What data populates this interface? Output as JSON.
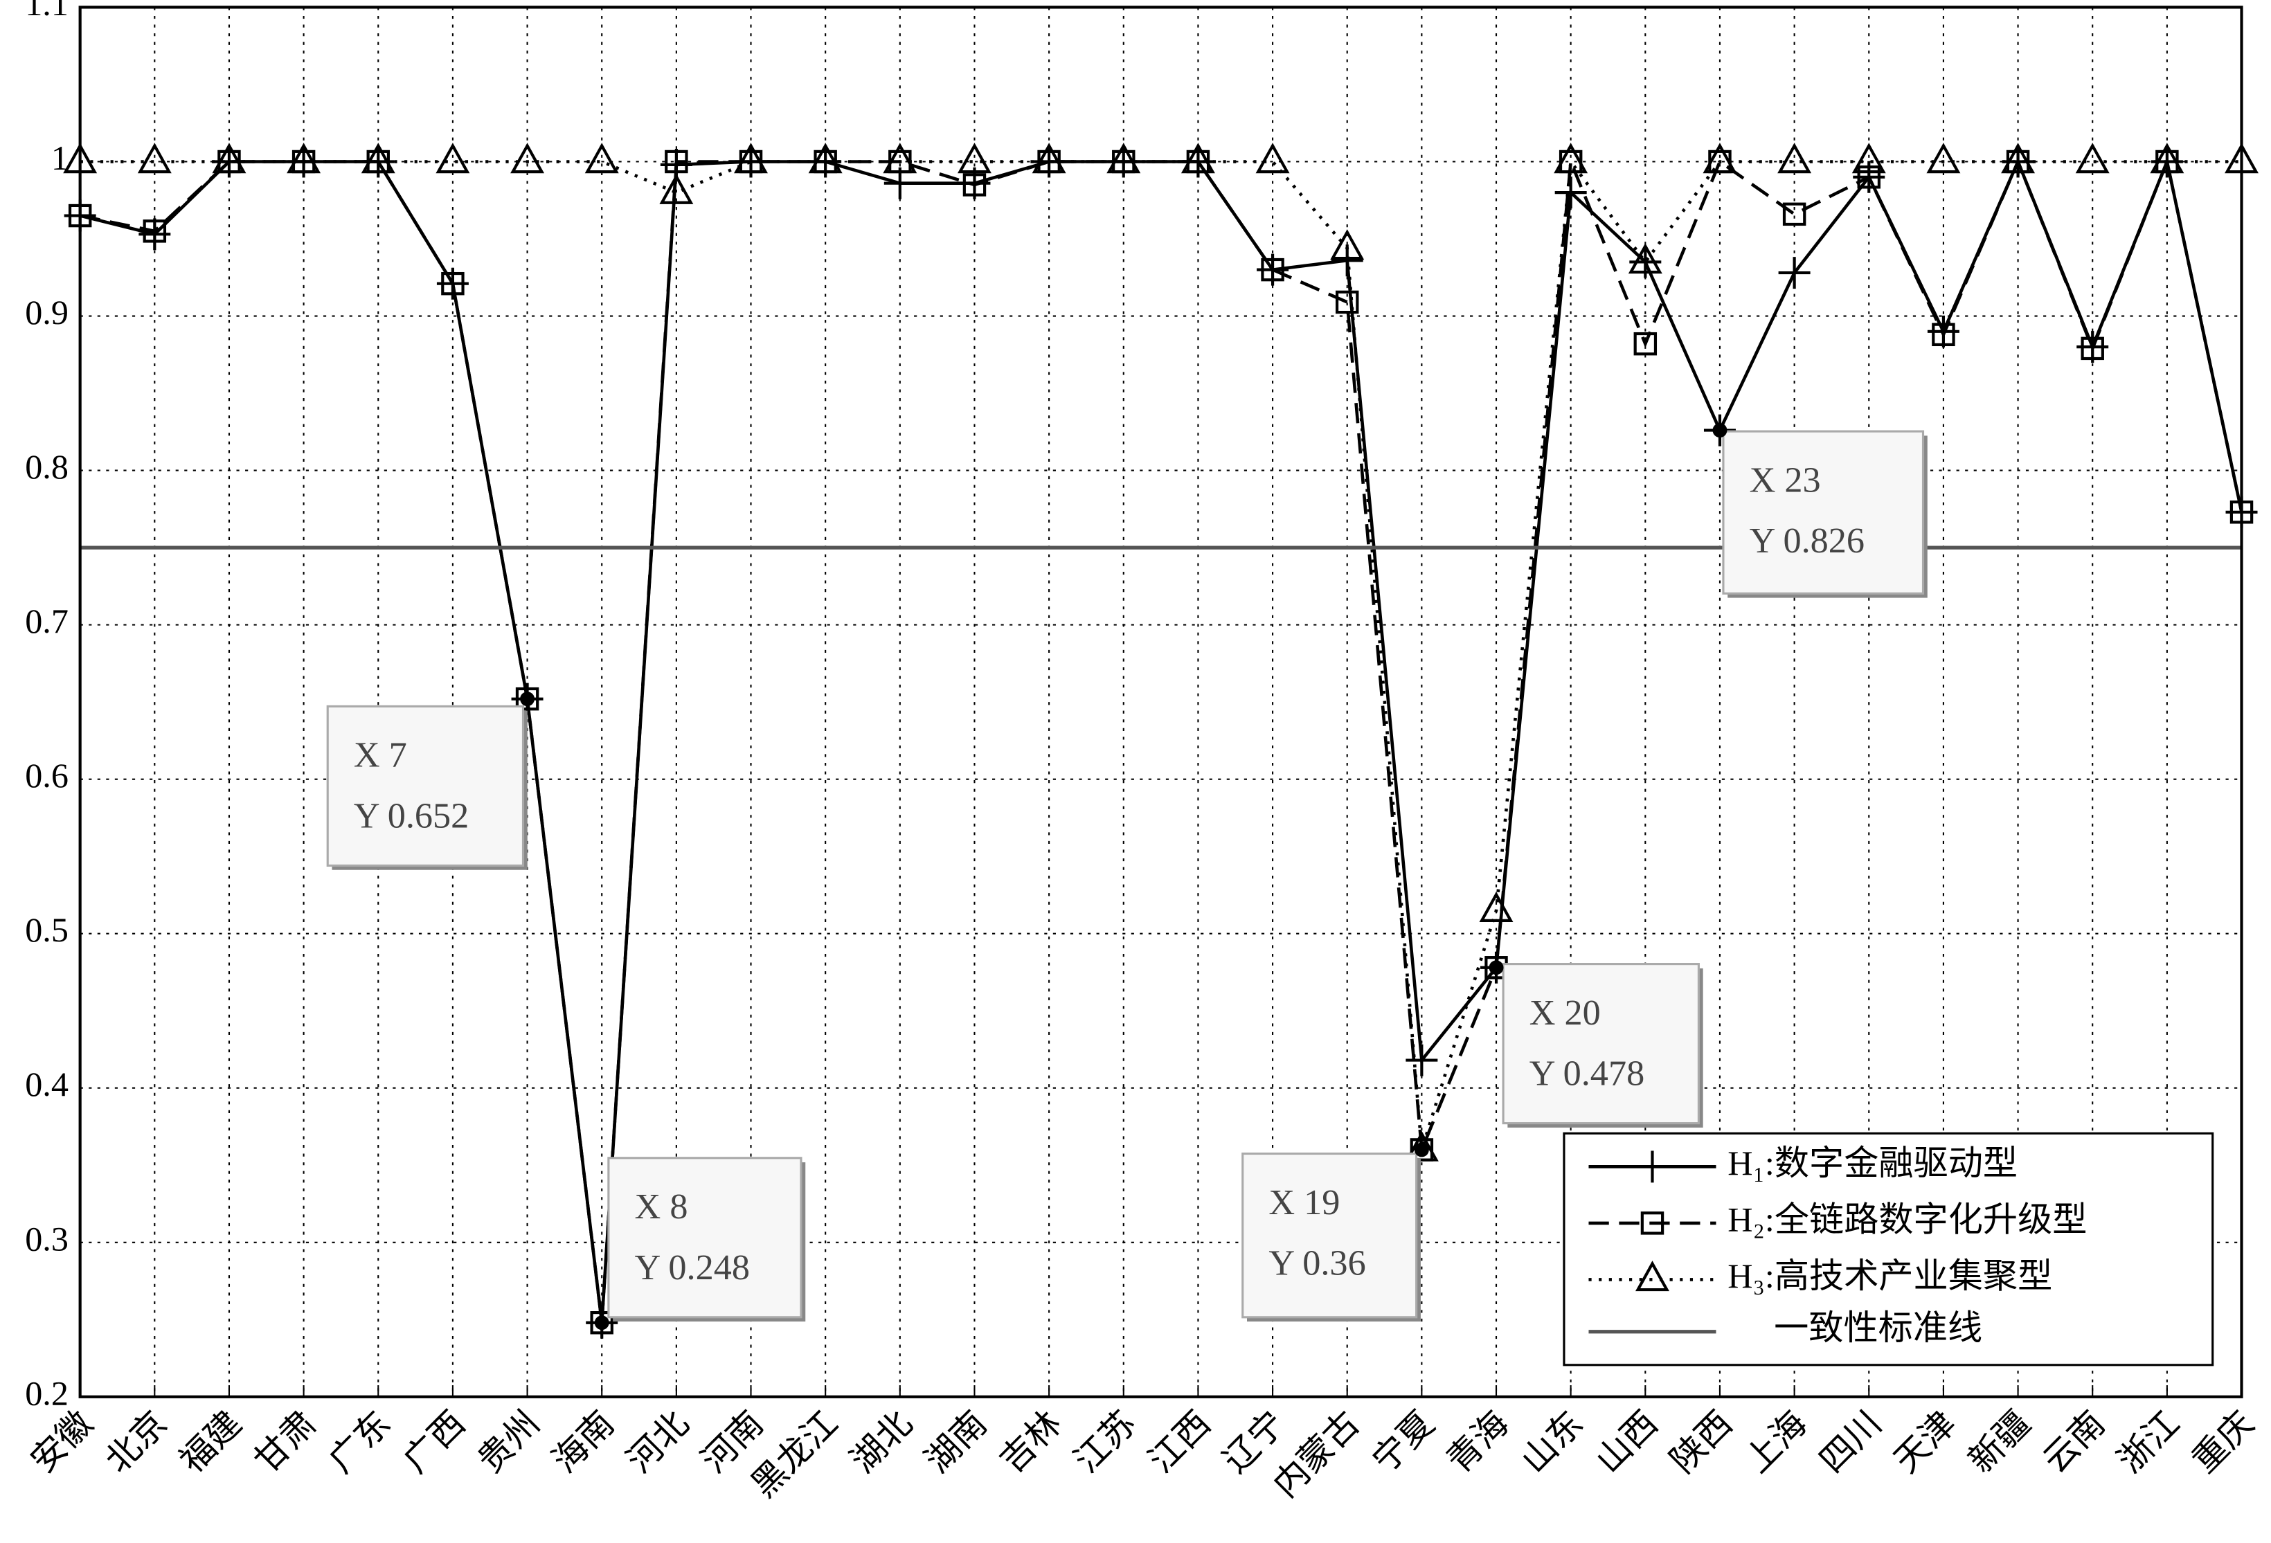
{
  "chart_data": {
    "type": "line",
    "categories": [
      "安徽",
      "北京",
      "福建",
      "甘肃",
      "广东",
      "广西",
      "贵州",
      "海南",
      "河北",
      "河南",
      "黑龙江",
      "湖北",
      "湖南",
      "吉林",
      "江苏",
      "江西",
      "辽宁",
      "内蒙古",
      "宁夏",
      "青海",
      "山东",
      "山西",
      "陕西",
      "上海",
      "四川",
      "天津",
      "新疆",
      "云南",
      "浙江",
      "重庆"
    ],
    "series": [
      {
        "name": "H₁:数字金融驱动型",
        "color": "#000000",
        "line_style": "solid",
        "marker": "plus",
        "values": [
          0.965,
          0.953,
          1,
          1,
          1,
          0.921,
          0.652,
          0.248,
          0.998,
          1,
          1,
          0.986,
          0.986,
          1,
          1,
          1,
          0.93,
          0.936,
          0.418,
          0.478,
          0.98,
          0.935,
          0.826,
          0.928,
          0.99,
          0.89,
          1,
          0.88,
          1,
          0.773
        ]
      },
      {
        "name": "H₂:全链路数字化升级型",
        "color": "#000000",
        "line_style": "dashed",
        "marker": "square",
        "values": [
          0.965,
          0.955,
          1,
          1,
          1,
          0.921,
          0.652,
          0.248,
          1,
          1,
          1,
          1,
          0.985,
          1,
          1,
          1,
          0.93,
          0.909,
          0.36,
          0.478,
          1,
          0.882,
          1,
          0.966,
          0.99,
          0.888,
          1,
          0.879,
          1,
          0.773
        ]
      },
      {
        "name": "H₃:高技术产业集聚型",
        "color": "#000000",
        "line_style": "dotted",
        "marker": "triangle",
        "values": [
          1,
          1,
          1,
          1,
          1,
          1,
          1,
          1,
          0.98,
          1,
          1,
          1,
          1,
          1,
          1,
          1,
          1,
          0.944,
          0.36,
          0.515,
          1,
          0.935,
          1,
          1,
          1,
          1,
          1,
          1,
          1,
          1
        ]
      }
    ],
    "reference_line": {
      "name": "一致性标准线",
      "value": 0.75,
      "color": "#555555"
    },
    "annotations": [
      {
        "x": 7,
        "y": 0.652,
        "label_x": "X 7",
        "label_y": "Y 0.652"
      },
      {
        "x": 8,
        "y": 0.248,
        "label_x": "X 8",
        "label_y": "Y 0.248"
      },
      {
        "x": 19,
        "y": 0.36,
        "label_x": "X 19",
        "label_y": "Y 0.36"
      },
      {
        "x": 20,
        "y": 0.478,
        "label_x": "X 20",
        "label_y": "Y 0.478"
      },
      {
        "x": 23,
        "y": 0.826,
        "label_x": "X 23",
        "label_y": "Y 0.826"
      }
    ],
    "ylim": [
      0.2,
      1.1
    ],
    "yticks": [
      0.2,
      0.3,
      0.4,
      0.5,
      0.6,
      0.7,
      0.8,
      0.9,
      1,
      1.1
    ],
    "grid": true
  }
}
